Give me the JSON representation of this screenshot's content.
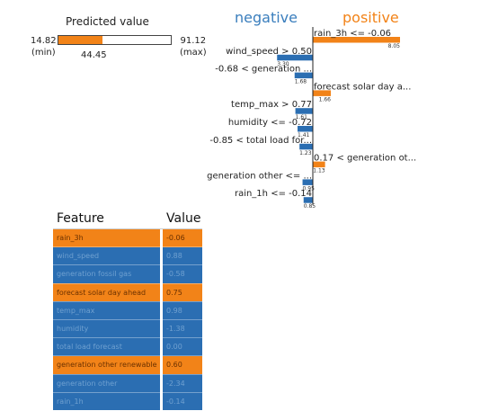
{
  "predicted": {
    "title": "Predicted value",
    "min": "14.82",
    "min_note": "(min)",
    "max": "91.12",
    "max_note": "(max)",
    "value": "44.45",
    "fill_fraction": 0.389
  },
  "headers": {
    "negative": "negative",
    "positive": "positive"
  },
  "colors": {
    "positive": "#f28318",
    "negative": "#2b6eb2"
  },
  "chart_data": {
    "type": "bar",
    "orientation": "horizontal",
    "categories": [
      "rain_3h <= -0.06",
      "wind_speed > 0.50",
      "-0.68 < generation ...",
      "forecast solar day a...",
      "temp_max > 0.77",
      "humidity <= -0.72",
      "-0.85 < total load for...",
      "0.17 < generation ot...",
      "generation other <= ...",
      "rain_1h <= -0.14"
    ],
    "values": [
      8.05,
      -3.3,
      -1.68,
      1.66,
      -1.61,
      -1.41,
      -1.23,
      1.13,
      -0.95,
      -0.85
    ],
    "value_labels": [
      "8.05",
      "3.30",
      "1.68",
      "1.66",
      "1.61",
      "1.41",
      "1.23",
      "1.13",
      "0.95",
      "0.85"
    ]
  },
  "table": {
    "headers": [
      "Feature",
      "Value"
    ],
    "rows": [
      {
        "feature": "rain_3h",
        "value": "-0.06",
        "sign": "positive"
      },
      {
        "feature": "wind_speed",
        "value": "0.88",
        "sign": "negative"
      },
      {
        "feature": "generation fossil gas",
        "value": "-0.58",
        "sign": "negative"
      },
      {
        "feature": "forecast solar day ahead",
        "value": "0.75",
        "sign": "positive"
      },
      {
        "feature": "temp_max",
        "value": "0.98",
        "sign": "negative"
      },
      {
        "feature": "humidity",
        "value": "-1.38",
        "sign": "negative"
      },
      {
        "feature": "total load forecast",
        "value": "0.00",
        "sign": "negative"
      },
      {
        "feature": "generation other renewable",
        "value": "0.60",
        "sign": "positive"
      },
      {
        "feature": "generation other",
        "value": "-2.34",
        "sign": "negative"
      },
      {
        "feature": "rain_1h",
        "value": "-0.14",
        "sign": "negative"
      }
    ]
  }
}
